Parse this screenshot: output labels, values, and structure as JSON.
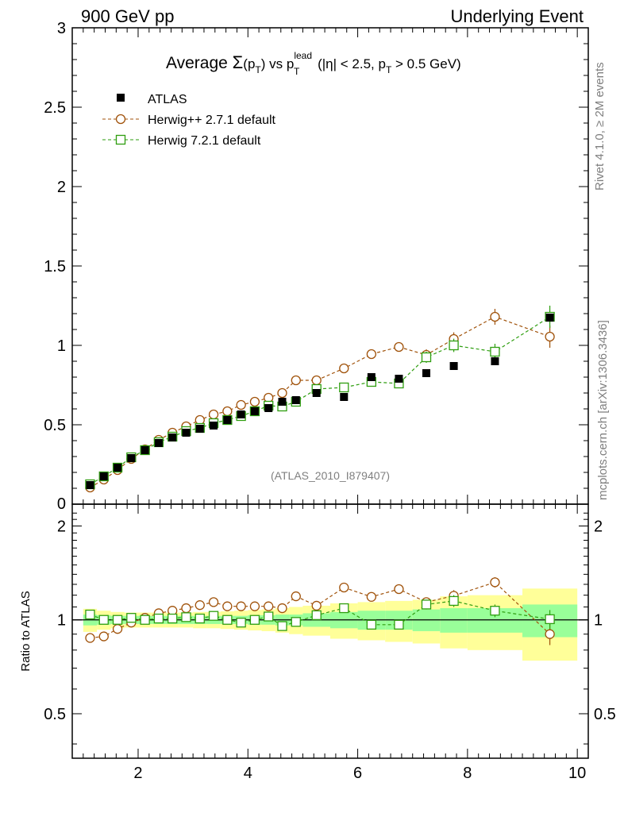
{
  "header": {
    "left": "900 GeV pp",
    "right": "Underlying Event"
  },
  "title": {
    "prefix": "Average ",
    "sigma": "Σ",
    "arg": "(p",
    "arg_sub": "T",
    "arg_close": ")",
    "vs": " vs p",
    "lead_sup": "lead",
    "lead_sub": "T",
    "cut1": " (|η| < 2.5, p",
    "cut_sub": "T",
    "cut2": " > 0.5 GeV)"
  },
  "side_labels": {
    "rivet": "Rivet 4.1.0, ≥ 2M events",
    "mcplots": "mcplots.cern.ch [arXiv:1306.3436]"
  },
  "watermark": "(ATLAS_2010_I879407)",
  "ratio_ylabel": "Ratio to ATLAS",
  "legend": [
    {
      "label": "ATLAS",
      "color": "#000000",
      "marker": "filled-square"
    },
    {
      "label": "Herwig++ 2.7.1 default",
      "color": "#a0520a",
      "marker": "open-circle"
    },
    {
      "label": "Herwig 7.2.1 default",
      "color": "#2e9e0f",
      "marker": "open-square"
    }
  ],
  "chart_data": {
    "type": "scatter",
    "x": [
      1.125,
      1.375,
      1.625,
      1.875,
      2.125,
      2.375,
      2.625,
      2.875,
      3.125,
      3.375,
      3.625,
      3.875,
      4.125,
      4.375,
      4.625,
      4.875,
      5.25,
      5.75,
      6.25,
      6.75,
      7.25,
      7.75,
      8.5,
      9.5
    ],
    "series": [
      {
        "name": "ATLAS",
        "values": [
          0.12,
          0.175,
          0.23,
          0.29,
          0.34,
          0.385,
          0.42,
          0.45,
          0.475,
          0.495,
          0.53,
          0.565,
          0.585,
          0.605,
          0.645,
          0.655,
          0.7,
          0.675,
          0.8,
          0.79,
          0.825,
          0.87,
          0.9,
          1.175
        ]
      },
      {
        "name": "Herwig++ 2.7.1 default",
        "values": [
          0.105,
          0.155,
          0.215,
          0.285,
          0.345,
          0.405,
          0.45,
          0.49,
          0.53,
          0.565,
          0.585,
          0.625,
          0.645,
          0.67,
          0.7,
          0.78,
          0.78,
          0.855,
          0.945,
          0.99,
          0.94,
          1.04,
          1.18,
          1.055
        ],
        "errors": [
          0.005,
          0.005,
          0.005,
          0.006,
          0.006,
          0.007,
          0.007,
          0.008,
          0.008,
          0.009,
          0.009,
          0.01,
          0.01,
          0.011,
          0.012,
          0.013,
          0.015,
          0.018,
          0.022,
          0.028,
          0.035,
          0.042,
          0.05,
          0.07
        ]
      },
      {
        "name": "Herwig 7.2.1 default",
        "values": [
          0.125,
          0.175,
          0.23,
          0.295,
          0.34,
          0.39,
          0.425,
          0.46,
          0.48,
          0.51,
          0.53,
          0.555,
          0.585,
          0.62,
          0.615,
          0.645,
          0.725,
          0.735,
          0.77,
          0.76,
          0.925,
          1.0,
          0.96,
          1.18
        ],
        "errors": [
          0.005,
          0.005,
          0.005,
          0.006,
          0.006,
          0.007,
          0.007,
          0.008,
          0.008,
          0.009,
          0.009,
          0.01,
          0.01,
          0.011,
          0.012,
          0.013,
          0.015,
          0.018,
          0.022,
          0.028,
          0.035,
          0.042,
          0.05,
          0.07
        ]
      }
    ],
    "ratio": {
      "ylabel": "Ratio to ATLAS",
      "herwigpp": [
        0.875,
        0.885,
        0.935,
        0.98,
        1.015,
        1.05,
        1.07,
        1.09,
        1.115,
        1.14,
        1.105,
        1.105,
        1.105,
        1.105,
        1.09,
        1.19,
        1.11,
        1.27,
        1.185,
        1.255,
        1.14,
        1.195,
        1.32,
        0.9
      ],
      "herwig7": [
        1.04,
        1.0,
        1.0,
        1.015,
        1.0,
        1.01,
        1.01,
        1.02,
        1.01,
        1.03,
        1.0,
        0.98,
        1.0,
        1.025,
        0.955,
        0.985,
        1.035,
        1.09,
        0.965,
        0.965,
        1.12,
        1.15,
        1.07,
        1.005
      ],
      "err_ratio": [
        0.01,
        0.01,
        0.01,
        0.01,
        0.01,
        0.01,
        0.01,
        0.01,
        0.01,
        0.01,
        0.01,
        0.01,
        0.01,
        0.01,
        0.01,
        0.01,
        0.015,
        0.02,
        0.02,
        0.03,
        0.04,
        0.05,
        0.05,
        0.07
      ],
      "band_edges": [
        1.0,
        1.25,
        1.5,
        1.75,
        2.0,
        2.25,
        2.5,
        2.75,
        3.0,
        3.25,
        3.5,
        3.75,
        4.0,
        4.25,
        4.5,
        4.75,
        5.0,
        5.5,
        6.0,
        6.5,
        7.0,
        7.5,
        8.0,
        9.0,
        10.0
      ],
      "band_inner": [
        0.04,
        0.035,
        0.03,
        0.03,
        0.03,
        0.03,
        0.03,
        0.03,
        0.03,
        0.03,
        0.03,
        0.03,
        0.035,
        0.035,
        0.04,
        0.04,
        0.05,
        0.06,
        0.07,
        0.07,
        0.08,
        0.09,
        0.09,
        0.12
      ],
      "band_outer": [
        0.085,
        0.07,
        0.06,
        0.055,
        0.055,
        0.055,
        0.055,
        0.055,
        0.06,
        0.06,
        0.065,
        0.07,
        0.075,
        0.08,
        0.09,
        0.1,
        0.11,
        0.13,
        0.14,
        0.15,
        0.16,
        0.19,
        0.2,
        0.26
      ]
    },
    "xlim": [
      0.8,
      10.2
    ],
    "ylim": [
      0,
      3
    ],
    "ratio_ylim": [
      0.36,
      2.35
    ],
    "ratio_ylog": true,
    "xticks": [
      2,
      4,
      6,
      8,
      10
    ],
    "yticks_main": [
      "0.5",
      "1",
      "1.5",
      "2",
      "2.5",
      "3"
    ],
    "yticks_ratio": [
      "0.5",
      "1",
      "2"
    ]
  }
}
